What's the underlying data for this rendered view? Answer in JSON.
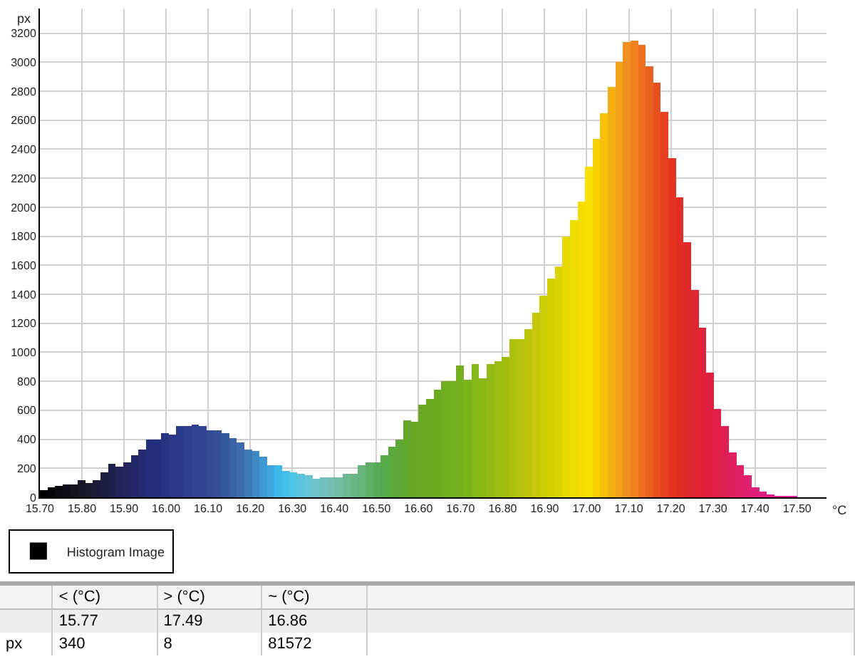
{
  "chart_data": {
    "type": "histogram",
    "ylabel": "px",
    "xlabel": "°C",
    "bins": [
      15.7,
      15.718,
      15.736,
      15.754,
      15.772,
      15.79,
      15.808,
      15.826,
      15.844,
      15.862,
      15.88,
      15.898,
      15.916,
      15.934,
      15.952,
      15.97,
      15.988,
      16.006,
      16.024,
      16.042,
      16.06,
      16.078,
      16.096,
      16.114,
      16.132,
      16.15,
      16.168,
      16.186,
      16.204,
      16.222,
      16.24,
      16.258,
      16.276,
      16.294,
      16.312,
      16.33,
      16.348,
      16.366,
      16.384,
      16.402,
      16.42,
      16.438,
      16.456,
      16.474,
      16.492,
      16.51,
      16.528,
      16.546,
      16.564,
      16.582,
      16.6,
      16.618,
      16.636,
      16.654,
      16.672,
      16.69,
      16.708,
      16.726,
      16.744,
      16.762,
      16.78,
      16.798,
      16.816,
      16.834,
      16.852,
      16.87,
      16.888,
      16.906,
      16.924,
      16.942,
      16.96,
      16.978,
      16.996,
      17.014,
      17.032,
      17.05,
      17.068,
      17.086,
      17.104,
      17.122,
      17.14,
      17.158,
      17.176,
      17.194,
      17.212,
      17.23,
      17.248,
      17.266,
      17.284,
      17.302,
      17.32,
      17.338,
      17.356,
      17.374,
      17.392,
      17.41,
      17.428,
      17.446,
      17.464,
      17.482,
      17.5
    ],
    "series": [
      {
        "name": "Histogram Image",
        "values": [
          50,
          70,
          80,
          90,
          90,
          120,
          100,
          120,
          170,
          230,
          210,
          240,
          290,
          330,
          400,
          400,
          440,
          430,
          490,
          490,
          500,
          490,
          460,
          460,
          440,
          410,
          380,
          330,
          320,
          280,
          220,
          220,
          180,
          170,
          160,
          150,
          130,
          140,
          140,
          140,
          160,
          160,
          220,
          240,
          240,
          290,
          350,
          400,
          530,
          520,
          640,
          680,
          740,
          800,
          800,
          910,
          810,
          920,
          820,
          920,
          940,
          970,
          1090,
          1090,
          1160,
          1270,
          1390,
          1510,
          1590,
          1800,
          1910,
          2040,
          2280,
          2470,
          2650,
          2830,
          3000,
          3140,
          3150,
          3120,
          2970,
          2860,
          2660,
          2340,
          2070,
          1760,
          1430,
          1170,
          860,
          610,
          490,
          310,
          220,
          150,
          70,
          40,
          20,
          10,
          10,
          10
        ],
        "colors": [
          "#000000",
          "#050508",
          "#0a0a10",
          "#0e0e18",
          "#121220",
          "#161628",
          "#1a1a30",
          "#1c1c38",
          "#1e1e42",
          "#20204c",
          "#212256",
          "#222560",
          "#232868",
          "#242b70",
          "#252e78",
          "#262f7e",
          "#283282",
          "#2a3686",
          "#2c3a8a",
          "#2e3e8e",
          "#304290",
          "#324692",
          "#344a96",
          "#365098",
          "#38589c",
          "#3a62a4",
          "#3c6cac",
          "#3e78b6",
          "#3e88c4",
          "#3e98d2",
          "#3ea8de",
          "#3eb8e8",
          "#44c0e8",
          "#50c4e4",
          "#5cc4dc",
          "#66c4d4",
          "#6ec2c8",
          "#72c0bc",
          "#74beb0",
          "#72bca2",
          "#6eb894",
          "#6ab486",
          "#66b278",
          "#60ae68",
          "#5aaa5a",
          "#58a84c",
          "#5aa840",
          "#5ea636",
          "#62a62c",
          "#66a826",
          "#68a822",
          "#6aaa20",
          "#6cac20",
          "#6eae20",
          "#72b020",
          "#76b020",
          "#7cb41c",
          "#84b618",
          "#8cb816",
          "#94ba14",
          "#9cbc12",
          "#a4be10",
          "#acc00e",
          "#b4c20c",
          "#bcc40a",
          "#c4c808",
          "#cccc06",
          "#d4d004",
          "#dcd402",
          "#e4d800",
          "#ecdc00",
          "#f4de00",
          "#fae000",
          "#f8d000",
          "#f6c008",
          "#f4b010",
          "#f2a018",
          "#f09020",
          "#ee8020",
          "#ec7020",
          "#ea6020",
          "#e85020",
          "#e64020",
          "#e43420",
          "#e22c24",
          "#e0282a",
          "#e02430",
          "#e02238",
          "#e02040",
          "#e0204a",
          "#e02054",
          "#e0205e",
          "#e02068",
          "#e02070",
          "#e02078",
          "#e02080",
          "#e02088",
          "#e0208e",
          "#e02094",
          "#e0209a"
        ]
      }
    ],
    "xlim": [
      15.7,
      17.57
    ],
    "xticks": [
      {
        "value": 15.7,
        "label": "15.70"
      },
      {
        "value": 15.8,
        "label": "15.80"
      },
      {
        "value": 15.9,
        "label": "15.90"
      },
      {
        "value": 16.0,
        "label": "16.00"
      },
      {
        "value": 16.1,
        "label": "16.10"
      },
      {
        "value": 16.2,
        "label": "16.20"
      },
      {
        "value": 16.3,
        "label": "16.30"
      },
      {
        "value": 16.4,
        "label": "16.40"
      },
      {
        "value": 16.5,
        "label": "16.50"
      },
      {
        "value": 16.6,
        "label": "16.60"
      },
      {
        "value": 16.7,
        "label": "16.70"
      },
      {
        "value": 16.8,
        "label": "16.80"
      },
      {
        "value": 16.9,
        "label": "16.90"
      },
      {
        "value": 17.0,
        "label": "17.00"
      },
      {
        "value": 17.1,
        "label": "17.10"
      },
      {
        "value": 17.2,
        "label": "17.20"
      },
      {
        "value": 17.3,
        "label": "17.30"
      },
      {
        "value": 17.4,
        "label": "17.40"
      },
      {
        "value": 17.5,
        "label": "17.50"
      }
    ],
    "ylim": [
      0,
      3370
    ],
    "yticks": [
      0,
      200,
      400,
      600,
      800,
      1000,
      1200,
      1400,
      1600,
      1800,
      2000,
      2200,
      2400,
      2600,
      2800,
      3000,
      3200
    ],
    "grid": true,
    "legend": "bottom left",
    "annotations": [
      "< (°C)",
      "> (°C)",
      "~ (°C)",
      "15.77",
      "17.49",
      "16.86",
      "px",
      "340",
      "8",
      "81572"
    ]
  }
}
